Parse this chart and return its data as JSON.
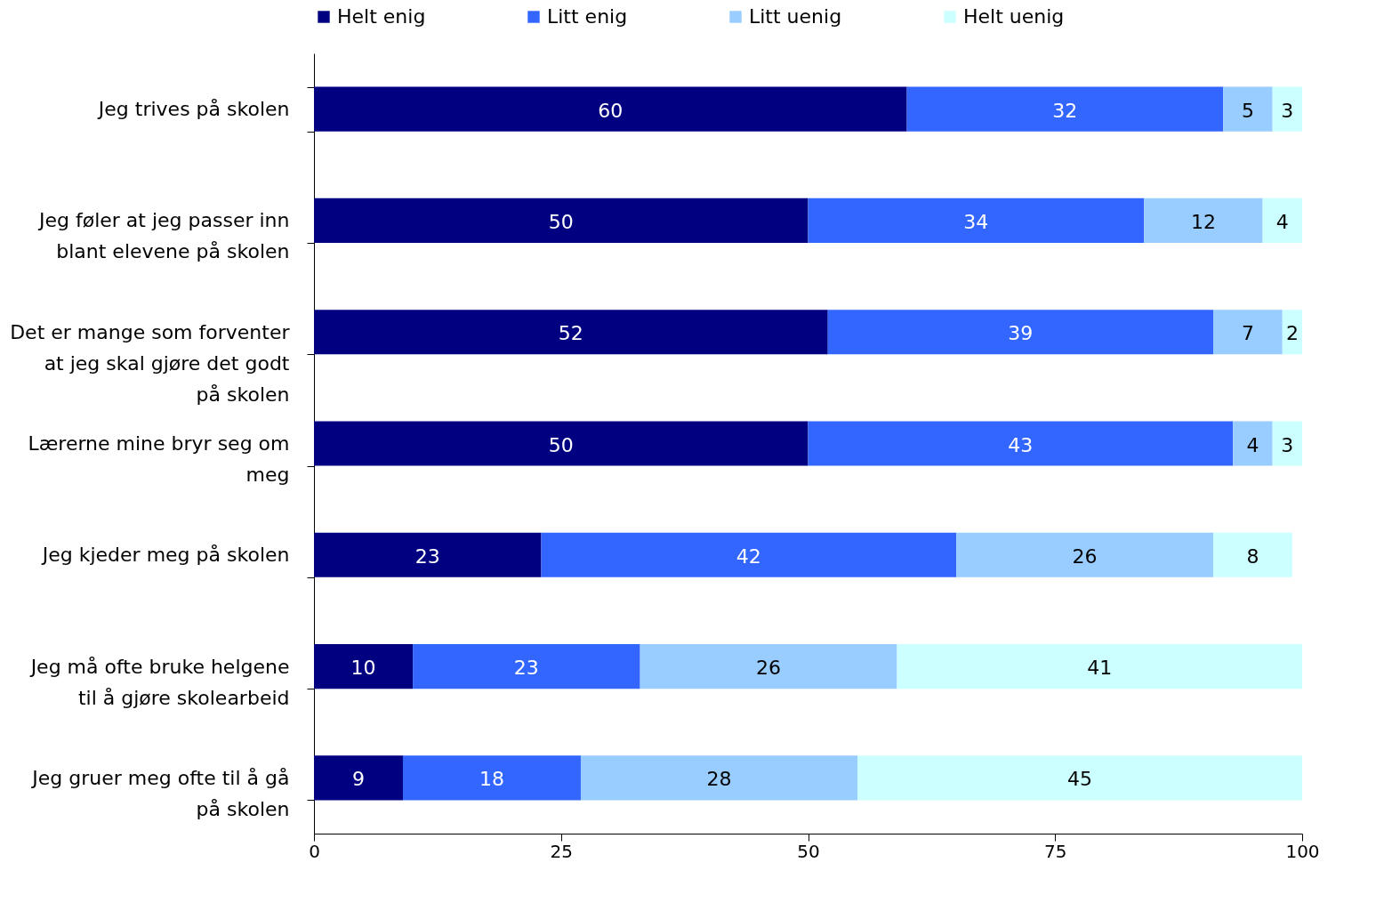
{
  "chart_data": {
    "type": "bar",
    "orientation": "horizontal",
    "stacked": true,
    "data_labels": true,
    "grid": false,
    "legend": "top",
    "categories": [
      "Jeg trives på skolen",
      "Jeg føler at jeg passer inn blant elevene på skolen",
      "Det er mange som forventer at jeg skal gjøre det godt på skolen",
      "Lærerne mine bryr seg om meg",
      "Jeg kjeder meg på skolen",
      "Jeg må ofte bruke helgene til å gjøre skolearbeid",
      "Jeg gruer meg ofte til å gå på skolen"
    ],
    "series": [
      {
        "name": "Helt enig",
        "color": "#000080",
        "values": [
          60,
          50,
          52,
          50,
          23,
          10,
          9
        ]
      },
      {
        "name": "Litt enig",
        "color": "#3366ff",
        "values": [
          32,
          34,
          39,
          43,
          42,
          23,
          18
        ]
      },
      {
        "name": "Litt uenig",
        "color": "#99ccff",
        "values": [
          5,
          12,
          7,
          4,
          26,
          26,
          28
        ]
      },
      {
        "name": "Helt uenig",
        "color": "#ccffff",
        "values": [
          3,
          4,
          2,
          3,
          8,
          41,
          45
        ]
      }
    ],
    "xlim": [
      0,
      100
    ],
    "xticks": [
      0,
      25,
      50,
      75,
      100
    ]
  }
}
